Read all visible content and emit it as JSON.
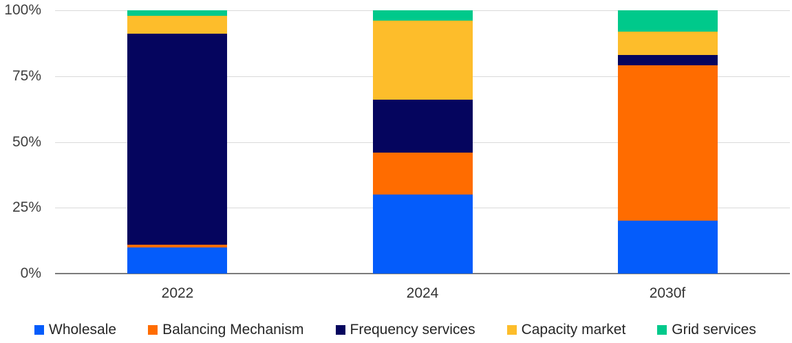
{
  "chart_data": {
    "type": "bar",
    "variant": "stacked-percent",
    "title": "",
    "xlabel": "",
    "ylabel": "",
    "categories": [
      "2022",
      "2024",
      "2030f"
    ],
    "series": [
      {
        "name": "Wholesale",
        "color": "#045cfb",
        "values": [
          10,
          30,
          20
        ]
      },
      {
        "name": "Balancing Mechanism",
        "color": "#ff6c00",
        "values": [
          1,
          16,
          59
        ]
      },
      {
        "name": "Frequency services",
        "color": "#05055e",
        "values": [
          80,
          20,
          4
        ]
      },
      {
        "name": "Capacity market",
        "color": "#fdbd2b",
        "values": [
          7,
          30,
          9
        ]
      },
      {
        "name": "Grid services",
        "color": "#00c98b",
        "values": [
          2,
          4,
          8
        ]
      }
    ],
    "y_ticks": [
      "100%",
      "75%",
      "50%",
      "25%",
      "0%"
    ],
    "ylim": [
      0,
      100
    ],
    "grid": true,
    "gridline_color": "#d9d9d9",
    "axis_line_color": "#7b7b7b",
    "legend_position": "bottom"
  }
}
